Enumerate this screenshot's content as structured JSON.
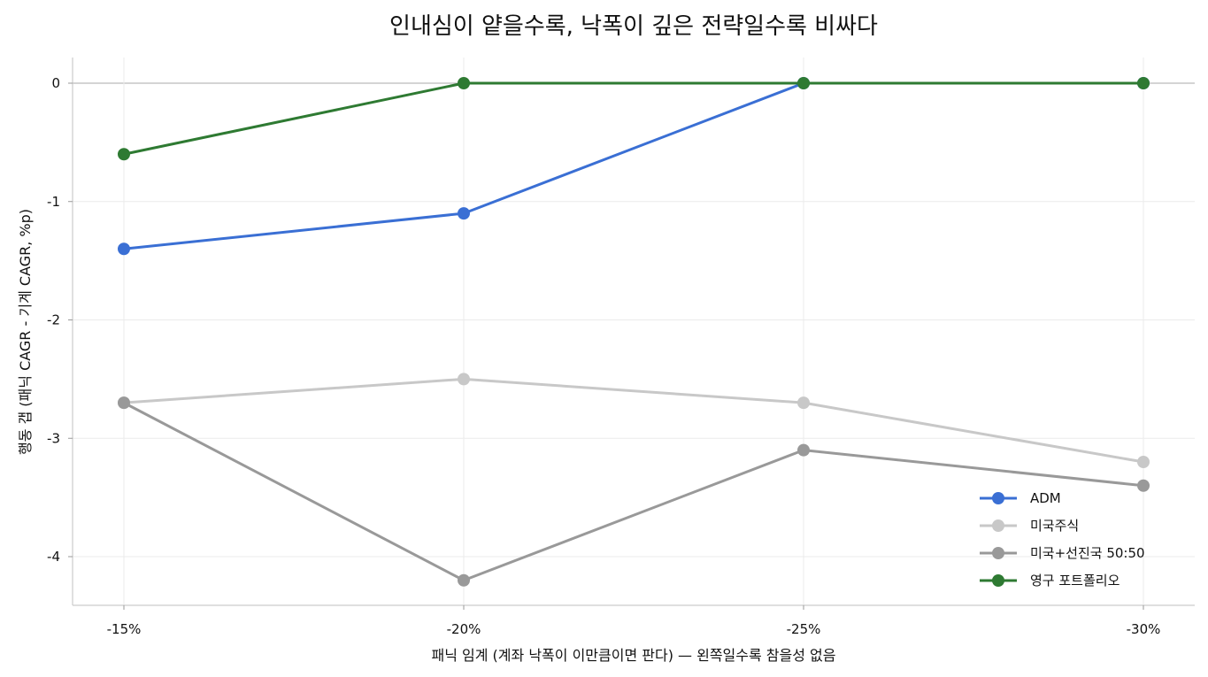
{
  "chart_data": {
    "type": "line",
    "title": "인내심이 얕을수록, 낙폭이 깊은 전략일수록 비싸다",
    "xlabel": "패닉 임계 (계좌 낙폭이 이만큼이면 판다) — 왼쪽일수록 참을성 없음",
    "ylabel": "행동 갭 (패닉 CAGR - 기계 CAGR, %p)",
    "categories": [
      "-15%",
      "-20%",
      "-25%",
      "-30%"
    ],
    "ylim": [
      -4.4,
      0.22
    ],
    "yticks": [
      0,
      -1,
      -2,
      -3,
      -4
    ],
    "grid": true,
    "zero_line": true,
    "legend_position": "lower-right",
    "series": [
      {
        "name": "ADM",
        "color": "#3a6fd4",
        "values": [
          -1.4,
          -1.1,
          0.0,
          0.0
        ]
      },
      {
        "name": "미국주식",
        "color": "#c8c8c8",
        "values": [
          -2.7,
          -2.5,
          -2.7,
          -3.2
        ]
      },
      {
        "name": "미국+선진국 50:50",
        "color": "#999999",
        "values": [
          -2.7,
          -4.2,
          -3.1,
          -3.4
        ]
      },
      {
        "name": "영구 포트폴리오",
        "color": "#2e7a32",
        "values": [
          -0.6,
          0.0,
          0.0,
          0.0
        ]
      }
    ]
  }
}
